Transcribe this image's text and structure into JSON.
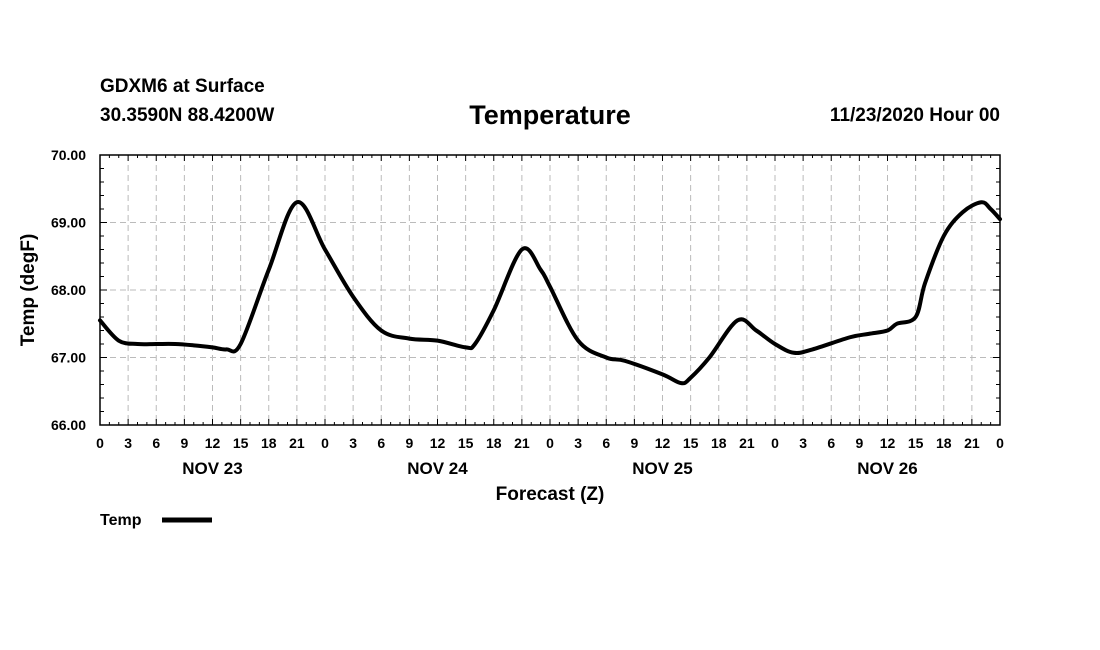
{
  "header": {
    "station": "GDXM6 at Surface",
    "coords": "30.3590N 88.4200W",
    "title": "Temperature",
    "datetime": "11/23/2020 Hour 00"
  },
  "colors": {
    "line": "#000000",
    "grid": "#bbbbbb"
  },
  "chart_data": {
    "type": "line",
    "title": "Temperature",
    "xlabel": "Forecast (Z)",
    "ylabel": "Temp (degF)",
    "ylim": [
      66.0,
      70.0
    ],
    "xlim": [
      0,
      96
    ],
    "yticks": [
      "66.00",
      "67.00",
      "68.00",
      "69.00",
      "70.00"
    ],
    "xtick_labels": [
      "0",
      "3",
      "6",
      "9",
      "12",
      "15",
      "18",
      "21",
      "0",
      "3",
      "6",
      "9",
      "12",
      "15",
      "18",
      "21",
      "0",
      "3",
      "6",
      "9",
      "12",
      "15",
      "18",
      "21",
      "0",
      "3",
      "6",
      "9",
      "12",
      "15",
      "18",
      "21",
      "0"
    ],
    "days": [
      {
        "label": "NOV 23",
        "center_hour": 12
      },
      {
        "label": "NOV 24",
        "center_hour": 36
      },
      {
        "label": "NOV 25",
        "center_hour": 60
      },
      {
        "label": "NOV 26",
        "center_hour": 84
      }
    ],
    "grid": true,
    "legend": [
      {
        "name": "Temp",
        "position": "bottom-left"
      }
    ],
    "series": [
      {
        "name": "Temp",
        "x": [
          0,
          2,
          4,
          6,
          8,
          10,
          12,
          13.5,
          15,
          18,
          21,
          24,
          27,
          30,
          33,
          36,
          39,
          40,
          42,
          45,
          47,
          48,
          51,
          54,
          56,
          60,
          62,
          63,
          65,
          68,
          70,
          72,
          74,
          76,
          80,
          82,
          84,
          85,
          87,
          88,
          90,
          92,
          94,
          95,
          96
        ],
        "values": [
          67.55,
          67.25,
          67.2,
          67.2,
          67.2,
          67.18,
          67.15,
          67.12,
          67.2,
          68.3,
          69.3,
          68.6,
          67.9,
          67.4,
          67.28,
          67.25,
          67.15,
          67.2,
          67.7,
          68.6,
          68.3,
          68.05,
          67.25,
          67.0,
          66.95,
          66.75,
          66.62,
          66.7,
          67.0,
          67.55,
          67.4,
          67.2,
          67.07,
          67.12,
          67.3,
          67.35,
          67.4,
          67.5,
          67.6,
          68.1,
          68.8,
          69.15,
          69.3,
          69.2,
          69.05
        ]
      }
    ]
  }
}
